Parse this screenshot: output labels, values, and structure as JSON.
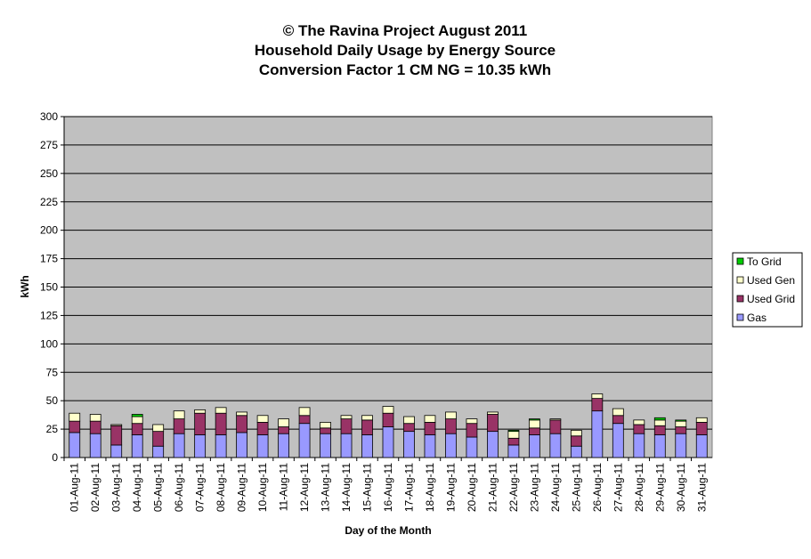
{
  "chart_data": {
    "type": "bar",
    "stacked": true,
    "title": [
      "© The Ravina Project August 2011",
      "Household Daily Usage by Energy Source",
      "Conversion Factor 1 CM NG = 10.35 kWh"
    ],
    "x_label": "Day of the Month",
    "y_label": "kWh",
    "categories": [
      "01-Aug-11",
      "02-Aug-11",
      "03-Aug-11",
      "04-Aug-11",
      "05-Aug-11",
      "06-Aug-11",
      "07-Aug-11",
      "08-Aug-11",
      "09-Aug-11",
      "10-Aug-11",
      "11-Aug-11",
      "12-Aug-11",
      "13-Aug-11",
      "14-Aug-11",
      "15-Aug-11",
      "16-Aug-11",
      "17-Aug-11",
      "18-Aug-11",
      "19-Aug-11",
      "20-Aug-11",
      "21-Aug-11",
      "22-Aug-11",
      "23-Aug-11",
      "24-Aug-11",
      "25-Aug-11",
      "26-Aug-11",
      "27-Aug-11",
      "28-Aug-11",
      "29-Aug-11",
      "30-Aug-11",
      "31-Aug-11"
    ],
    "series": [
      {
        "name": "Gas",
        "color": "#9999ff",
        "values": [
          22,
          21,
          11,
          20,
          10,
          21,
          20,
          20,
          22,
          20,
          21,
          30,
          21,
          21,
          20,
          27,
          23,
          20,
          21,
          18,
          23,
          11,
          20,
          21,
          10,
          41,
          30,
          21,
          20,
          21,
          20
        ]
      },
      {
        "name": "Used Grid",
        "color": "#993366",
        "values": [
          10,
          11,
          17,
          10,
          13,
          13,
          19,
          19,
          15,
          11,
          6,
          7,
          5,
          13,
          13,
          12,
          7,
          11,
          13,
          12,
          15,
          6,
          6,
          12,
          9,
          11,
          7,
          8,
          8,
          6,
          11
        ]
      },
      {
        "name": "Used Gen",
        "color": "#ffffcc",
        "values": [
          7,
          6,
          1,
          6,
          6,
          7,
          3,
          5,
          3,
          6,
          7,
          7,
          5,
          3,
          4,
          6,
          6,
          6,
          6,
          4,
          2,
          6,
          7,
          1,
          5,
          4,
          6,
          4,
          5,
          5,
          4
        ]
      },
      {
        "name": "To Grid",
        "color": "#00cc00",
        "values": [
          0,
          0,
          0,
          2,
          0,
          0,
          0,
          0,
          0,
          0,
          0,
          0,
          0,
          0,
          0,
          0,
          0,
          0,
          0,
          0,
          0,
          1,
          1,
          0,
          0,
          0,
          0,
          0,
          2,
          1,
          0
        ]
      }
    ],
    "ylim": [
      0,
      300
    ],
    "yticks": [
      0,
      25,
      50,
      75,
      100,
      125,
      150,
      175,
      200,
      225,
      250,
      275,
      300
    ],
    "grid": true,
    "legend": "right"
  }
}
